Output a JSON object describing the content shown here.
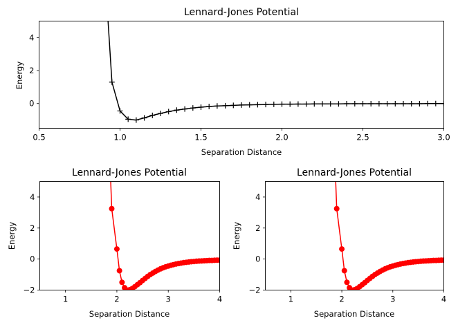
{
  "chart_data": [
    {
      "type": "line",
      "title": "Lennard-Jones Potential",
      "xlabel": "Separation Distance",
      "ylabel": "Energy",
      "xlim": [
        0.5,
        3.0
      ],
      "ylim": [
        -1.5,
        5
      ],
      "xticks": [
        "0.5",
        "1.0",
        "1.5",
        "2.0",
        "2.5",
        "3.0"
      ],
      "xtick_values": [
        0.5,
        1.0,
        1.5,
        2.0,
        2.5,
        3.0
      ],
      "yticks": [
        "0",
        "2",
        "4"
      ],
      "ytick_values": [
        0,
        2,
        4
      ],
      "grid": false,
      "legend": "none",
      "series": [
        {
          "color": "#000000",
          "marker": "plus",
          "line_style": "solid",
          "x": [
            0.9,
            0.95,
            1.0,
            1.05,
            1.1,
            1.15,
            1.2,
            1.25,
            1.3,
            1.35,
            1.4,
            1.45,
            1.5,
            1.55,
            1.6,
            1.65,
            1.7,
            1.75,
            1.8,
            1.85,
            1.9,
            1.95,
            2.0,
            2.05,
            2.1,
            2.15,
            2.2,
            2.25,
            2.3,
            2.35,
            2.4,
            2.45,
            2.5,
            2.55,
            2.6,
            2.65,
            2.7,
            2.75,
            2.8,
            2.85,
            2.9,
            2.95,
            3.0
          ],
          "y": [
            9.0,
            1.3,
            -0.45,
            -0.95,
            -1.0,
            -0.87,
            -0.72,
            -0.6,
            -0.49,
            -0.4,
            -0.33,
            -0.27,
            -0.22,
            -0.18,
            -0.15,
            -0.13,
            -0.11,
            -0.09,
            -0.08,
            -0.07,
            -0.06,
            -0.05,
            -0.04,
            -0.04,
            -0.03,
            -0.03,
            -0.02,
            -0.02,
            -0.02,
            -0.02,
            -0.01,
            -0.01,
            -0.01,
            -0.01,
            -0.01,
            -0.01,
            -0.01,
            -0.01,
            -0.01,
            -0.01,
            0.0,
            0.0,
            0.0
          ]
        }
      ]
    },
    {
      "type": "line",
      "title": "Lennard-Jones Potential",
      "xlabel": "Separation Distance",
      "ylabel": "Energy",
      "xlim": [
        0.5,
        4.0
      ],
      "ylim": [
        -2,
        5
      ],
      "xticks": [
        "1",
        "2",
        "3",
        "4"
      ],
      "xtick_values": [
        1,
        2,
        3,
        4
      ],
      "yticks": [
        "−2",
        "0",
        "2",
        "4"
      ],
      "ytick_values": [
        -2,
        0,
        2,
        4
      ],
      "grid": false,
      "legend": "none",
      "series": [
        {
          "color": "#ff0000",
          "marker": "circle",
          "line_style": "solid",
          "x": [
            1.8,
            1.9,
            2.0,
            2.05,
            2.1,
            2.15,
            2.2,
            2.25,
            2.3,
            2.35,
            2.4,
            2.45,
            2.5,
            2.55,
            2.6,
            2.65,
            2.7,
            2.75,
            2.8,
            2.85,
            2.9,
            2.95,
            3.0,
            3.05,
            3.1,
            3.15,
            3.2,
            3.25,
            3.3,
            3.35,
            3.4,
            3.45,
            3.5,
            3.55,
            3.6,
            3.65,
            3.7,
            3.75,
            3.8,
            3.85,
            3.9,
            3.95,
            4.0
          ],
          "y": [
            12.0,
            3.25,
            0.65,
            -0.75,
            -1.5,
            -1.85,
            -2.0,
            -1.98,
            -1.9,
            -1.78,
            -1.65,
            -1.52,
            -1.38,
            -1.25,
            -1.12,
            -1.0,
            -0.9,
            -0.8,
            -0.71,
            -0.63,
            -0.56,
            -0.5,
            -0.45,
            -0.4,
            -0.36,
            -0.32,
            -0.29,
            -0.26,
            -0.23,
            -0.21,
            -0.19,
            -0.17,
            -0.16,
            -0.14,
            -0.13,
            -0.12,
            -0.11,
            -0.1,
            -0.09,
            -0.09,
            -0.08,
            -0.07,
            -0.07
          ]
        }
      ]
    },
    {
      "type": "line",
      "title": "Lennard-Jones Potential",
      "xlabel": "Separation Distance",
      "ylabel": "Energy",
      "xlim": [
        0.5,
        4.0
      ],
      "ylim": [
        -2,
        5
      ],
      "xticks": [
        "1",
        "2",
        "3",
        "4"
      ],
      "xtick_values": [
        1,
        2,
        3,
        4
      ],
      "yticks": [
        "−2",
        "0",
        "2",
        "4"
      ],
      "ytick_values": [
        -2,
        0,
        2,
        4
      ],
      "grid": false,
      "legend": "none",
      "series": [
        {
          "color": "#ff0000",
          "marker": "circle",
          "line_style": "solid",
          "x": [
            1.8,
            1.9,
            2.0,
            2.05,
            2.1,
            2.15,
            2.2,
            2.25,
            2.3,
            2.35,
            2.4,
            2.45,
            2.5,
            2.55,
            2.6,
            2.65,
            2.7,
            2.75,
            2.8,
            2.85,
            2.9,
            2.95,
            3.0,
            3.05,
            3.1,
            3.15,
            3.2,
            3.25,
            3.3,
            3.35,
            3.4,
            3.45,
            3.5,
            3.55,
            3.6,
            3.65,
            3.7,
            3.75,
            3.8,
            3.85,
            3.9,
            3.95,
            4.0
          ],
          "y": [
            12.0,
            3.25,
            0.65,
            -0.75,
            -1.5,
            -1.85,
            -2.0,
            -1.98,
            -1.9,
            -1.78,
            -1.65,
            -1.52,
            -1.38,
            -1.25,
            -1.12,
            -1.0,
            -0.9,
            -0.8,
            -0.71,
            -0.63,
            -0.56,
            -0.5,
            -0.45,
            -0.4,
            -0.36,
            -0.32,
            -0.29,
            -0.26,
            -0.23,
            -0.21,
            -0.19,
            -0.17,
            -0.16,
            -0.14,
            -0.13,
            -0.12,
            -0.11,
            -0.1,
            -0.09,
            -0.09,
            -0.08,
            -0.07,
            -0.07
          ]
        }
      ]
    }
  ]
}
